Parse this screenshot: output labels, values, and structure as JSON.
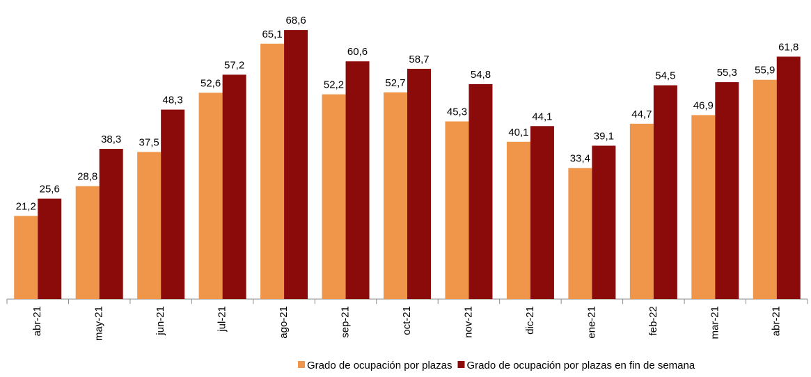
{
  "chart_data": {
    "type": "bar",
    "categories": [
      "abr-21",
      "may-21",
      "jun-21",
      "jul-21",
      "ago-21",
      "sep-21",
      "oct-21",
      "nov-21",
      "dic-21",
      "ene-21",
      "feb-22",
      "mar-21",
      "abr-21"
    ],
    "series": [
      {
        "name": "Grado de ocupación por plazas",
        "color": "#f0964b",
        "values": [
          21.2,
          28.8,
          37.5,
          52.6,
          65.1,
          52.2,
          52.7,
          45.3,
          40.1,
          33.4,
          44.7,
          46.9,
          55.9
        ],
        "value_labels": [
          "21,2",
          "28,8",
          "37,5",
          "52,6",
          "65,1",
          "52,2",
          "52,7",
          "45,3",
          "40,1",
          "33,4",
          "44,7",
          "46,9",
          "55,9"
        ]
      },
      {
        "name": "Grado de ocupación por plazas en fin de semana",
        "color": "#8b0a0a",
        "values": [
          25.6,
          38.3,
          48.3,
          57.2,
          68.6,
          60.6,
          58.7,
          54.8,
          44.1,
          39.1,
          54.5,
          55.3,
          61.8
        ],
        "value_labels": [
          "25,6",
          "38,3",
          "48,3",
          "57,2",
          "68,6",
          "60,6",
          "58,7",
          "54,8",
          "44,1",
          "39,1",
          "54,5",
          "55,3",
          "61,8"
        ]
      }
    ],
    "ylim": [
      0,
      75
    ],
    "legend": "bottom"
  }
}
